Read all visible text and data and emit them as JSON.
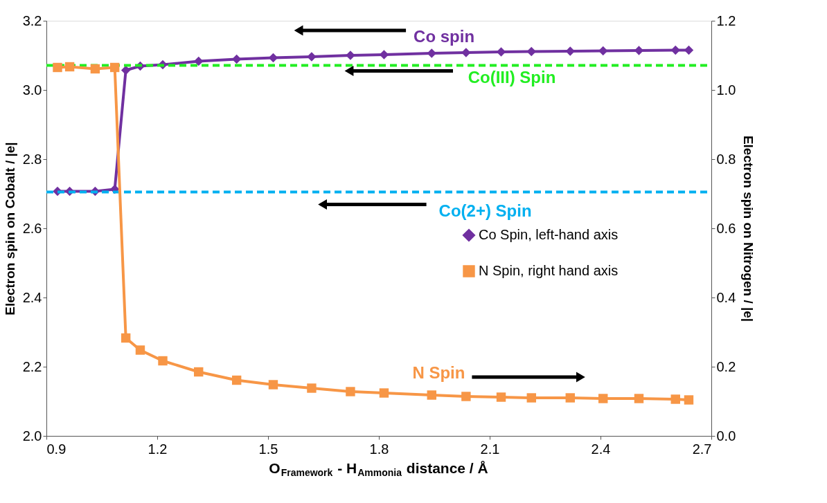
{
  "chart_data": {
    "type": "line",
    "xlabel": "O$_{Framework}$ - H$_{Ammonia}$ distance / Å",
    "ylabel": "Electron spin on Cobalt / |e|",
    "y2label": "Electron spin on Nitrogen / |e|",
    "x": [
      0.93,
      0.963,
      1.032,
      1.085,
      1.115,
      1.154,
      1.215,
      1.312,
      1.415,
      1.514,
      1.618,
      1.723,
      1.814,
      1.943,
      2.036,
      2.131,
      2.213,
      2.318,
      2.407,
      2.504,
      2.603,
      2.639
    ],
    "series": [
      {
        "name": "Co Spin, left-hand axis",
        "color": "#7030a0",
        "marker": "diamond",
        "axis": "y",
        "values": [
          2.707,
          2.707,
          2.707,
          2.713,
          3.057,
          3.069,
          3.073,
          3.083,
          3.089,
          3.093,
          3.096,
          3.1,
          3.102,
          3.106,
          3.108,
          3.11,
          3.111,
          3.112,
          3.113,
          3.114,
          3.115,
          3.115
        ]
      },
      {
        "name": "N Spin, right hand axis",
        "color": "#f79646",
        "marker": "square",
        "axis": "y2",
        "values": [
          1.065,
          1.067,
          1.061,
          1.065,
          0.283,
          0.248,
          0.217,
          0.185,
          0.161,
          0.148,
          0.138,
          0.128,
          0.124,
          0.118,
          0.114,
          0.112,
          0.11,
          0.11,
          0.108,
          0.108,
          0.106,
          0.104
        ]
      }
    ],
    "xlim": [
      0.9,
      2.7
    ],
    "xticks": [
      0.9,
      1.2,
      1.5,
      1.8,
      2.1,
      2.4,
      2.7
    ],
    "ylim": [
      2.0,
      3.2
    ],
    "yticks": [
      {
        "value": 2,
        "label": "2.0"
      },
      2.2,
      2.4,
      2.6,
      2.8,
      {
        "value": 3,
        "label": "3.0"
      },
      3.2
    ],
    "y2lim": [
      0.0,
      1.2
    ],
    "y2ticks": [
      {
        "value": 0,
        "label": "0.0"
      },
      0.2,
      0.4,
      0.6,
      0.8,
      {
        "value": 1,
        "label": "1.0"
      },
      1.2
    ],
    "ref_lines": [
      {
        "axis": "y",
        "value": 3.071,
        "label": "Co(III) Spin",
        "color": "#22ee22",
        "line_style": "dashed"
      },
      {
        "axis": "y",
        "value": 2.705,
        "label": "Co(2+) Spin",
        "color": "#00b0f0",
        "line_style": "dashed"
      }
    ],
    "annotations": [
      "Co spin",
      "N Spin"
    ],
    "legend": "right",
    "grid": false
  }
}
